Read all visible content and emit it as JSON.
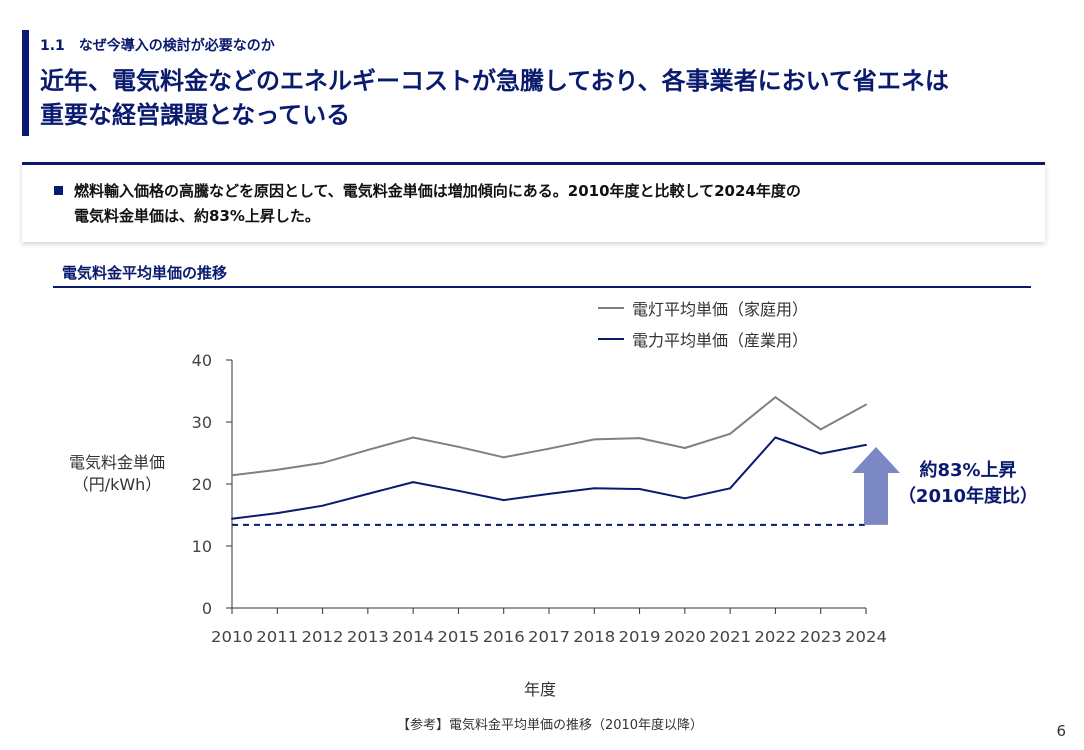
{
  "header": {
    "section_number": "1.1",
    "section_title": "なぜ今導入の検討が必要なのか",
    "headline_line1": "近年、電気料金などのエネルギーコストが急騰しており、各事業者において省エネは",
    "headline_line2": "重要な経営課題となっている"
  },
  "summary": {
    "line1": "燃料輸入価格の高騰などを原因として、電気料金単価は増加傾向にある。2010年度と比較して2024年度の",
    "line2": "電気料金単価は、約83%上昇した。"
  },
  "chart_section": {
    "heading": "電気料金平均単価の推移"
  },
  "colors": {
    "accent": "#0a1a6e",
    "household": "#808080",
    "industrial": "#0a1a6e",
    "arrow": "#7b88c4"
  },
  "chart_data": {
    "type": "line",
    "x": [
      "2010",
      "2011",
      "2012",
      "2013",
      "2014",
      "2015",
      "2016",
      "2017",
      "2018",
      "2019",
      "2020",
      "2021",
      "2022",
      "2023",
      "2024"
    ],
    "series": [
      {
        "name": "電灯平均単価（家庭用）",
        "values": [
          21.4,
          22.3,
          23.4,
          25.5,
          27.5,
          26.0,
          24.3,
          25.7,
          27.2,
          27.4,
          25.8,
          28.1,
          34.0,
          28.8,
          32.8
        ]
      },
      {
        "name": "電力平均単価（産業用）",
        "values": [
          14.4,
          15.3,
          16.5,
          18.4,
          20.3,
          18.9,
          17.4,
          18.4,
          19.3,
          19.2,
          17.7,
          19.3,
          27.5,
          24.9,
          26.3
        ]
      }
    ],
    "baseline": 13.4,
    "ylim": [
      0,
      40
    ],
    "yticks": [
      0,
      10,
      20,
      30,
      40
    ],
    "ylabel_line1": "電気料金単価",
    "ylabel_line2": "（円/kWh）",
    "xlabel": "年度",
    "annotation_line1": "約83%上昇",
    "annotation_line2": "（2010年度比）"
  },
  "footer": {
    "source": "【参考】電気料金平均単価の推移（2010年度以降）",
    "page": "6"
  }
}
